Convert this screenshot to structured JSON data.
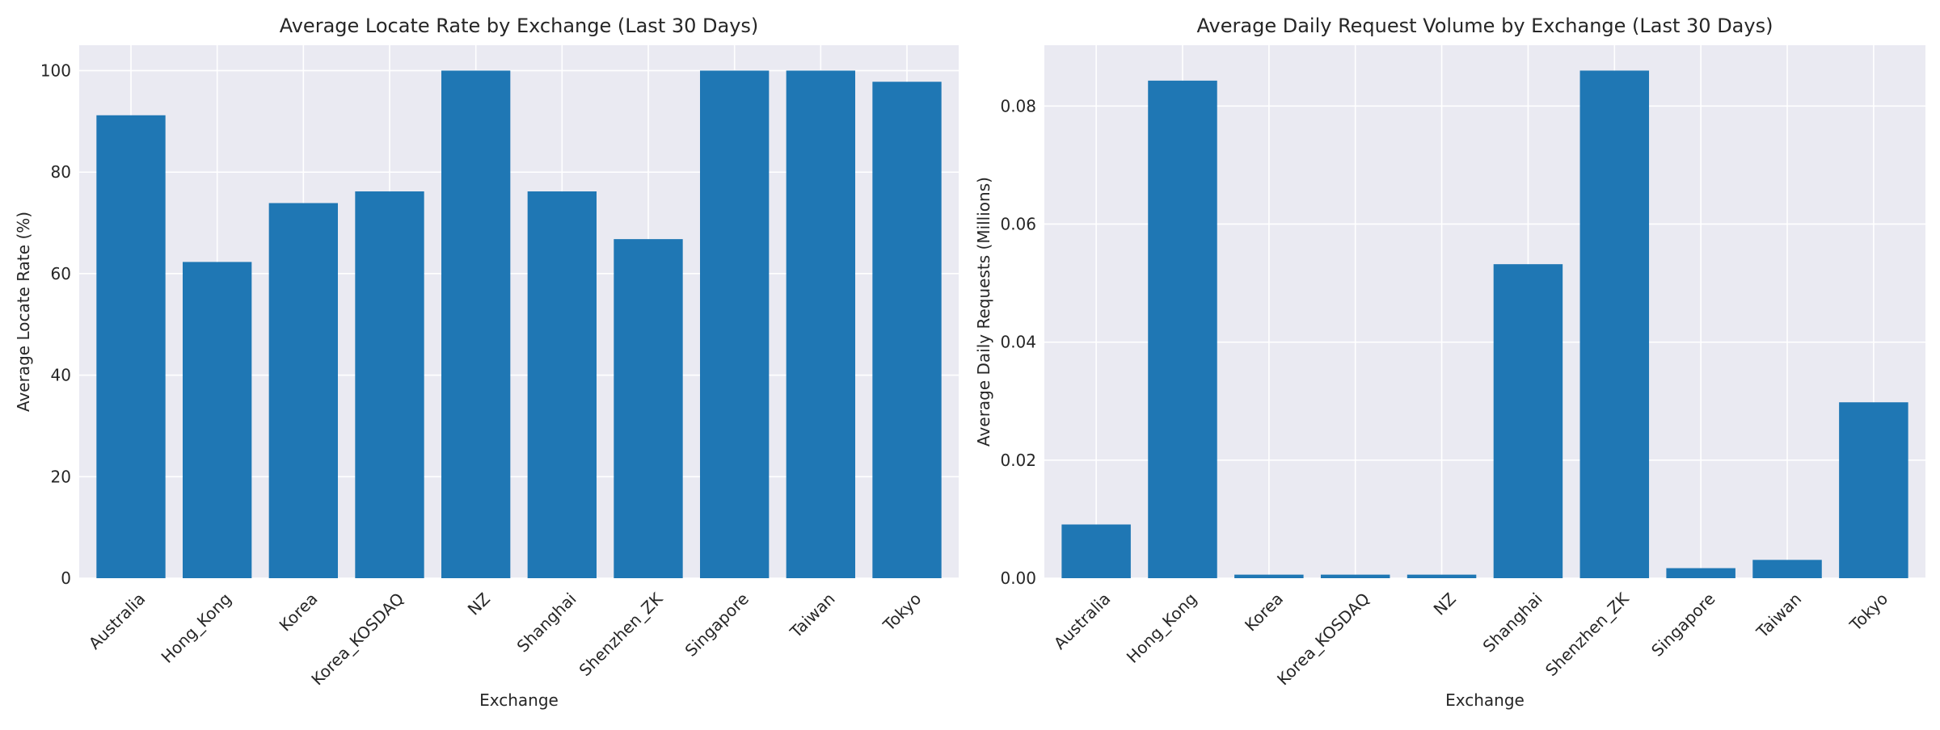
{
  "colors": {
    "bar": "#1f77b4",
    "plot_bg": "#eaeaf2",
    "grid": "#ffffff",
    "text": "#262626"
  },
  "chart_data": [
    {
      "type": "bar",
      "title": "Average Locate Rate by Exchange (Last 30 Days)",
      "xlabel": "Exchange",
      "ylabel": "Average Locate Rate (%)",
      "categories": [
        "Australia",
        "Hong_Kong",
        "Korea",
        "Korea_KOSDAQ",
        "NZ",
        "Shanghai",
        "Shenzhen_ZK",
        "Singapore",
        "Taiwan",
        "Tokyo"
      ],
      "values": [
        91.2,
        62.3,
        73.9,
        76.2,
        100,
        76.2,
        66.8,
        100,
        100,
        97.8
      ],
      "ylim": [
        0,
        105
      ],
      "yticks": [
        0,
        20,
        40,
        60,
        80,
        100
      ],
      "ytick_labels": [
        "0",
        "20",
        "40",
        "60",
        "80",
        "100"
      ],
      "grid": true,
      "legend": "none"
    },
    {
      "type": "bar",
      "title": "Average Daily Request Volume by Exchange (Last 30 Days)",
      "xlabel": "Exchange",
      "ylabel": "Average Daily Requests (Millions)",
      "categories": [
        "Australia",
        "Hong_Kong",
        "Korea",
        "Korea_KOSDAQ",
        "NZ",
        "Shanghai",
        "Shenzhen_ZK",
        "Singapore",
        "Taiwan",
        "Tokyo"
      ],
      "values": [
        0.0091,
        0.0843,
        0.0006,
        0.0006,
        0.0006,
        0.0532,
        0.086,
        0.0017,
        0.0031,
        0.0298
      ],
      "ylim": [
        0,
        0.0903
      ],
      "yticks": [
        0,
        0.02,
        0.04,
        0.06,
        0.08
      ],
      "ytick_labels": [
        "0.00",
        "0.02",
        "0.04",
        "0.06",
        "0.08"
      ],
      "grid": true,
      "legend": "none"
    }
  ]
}
